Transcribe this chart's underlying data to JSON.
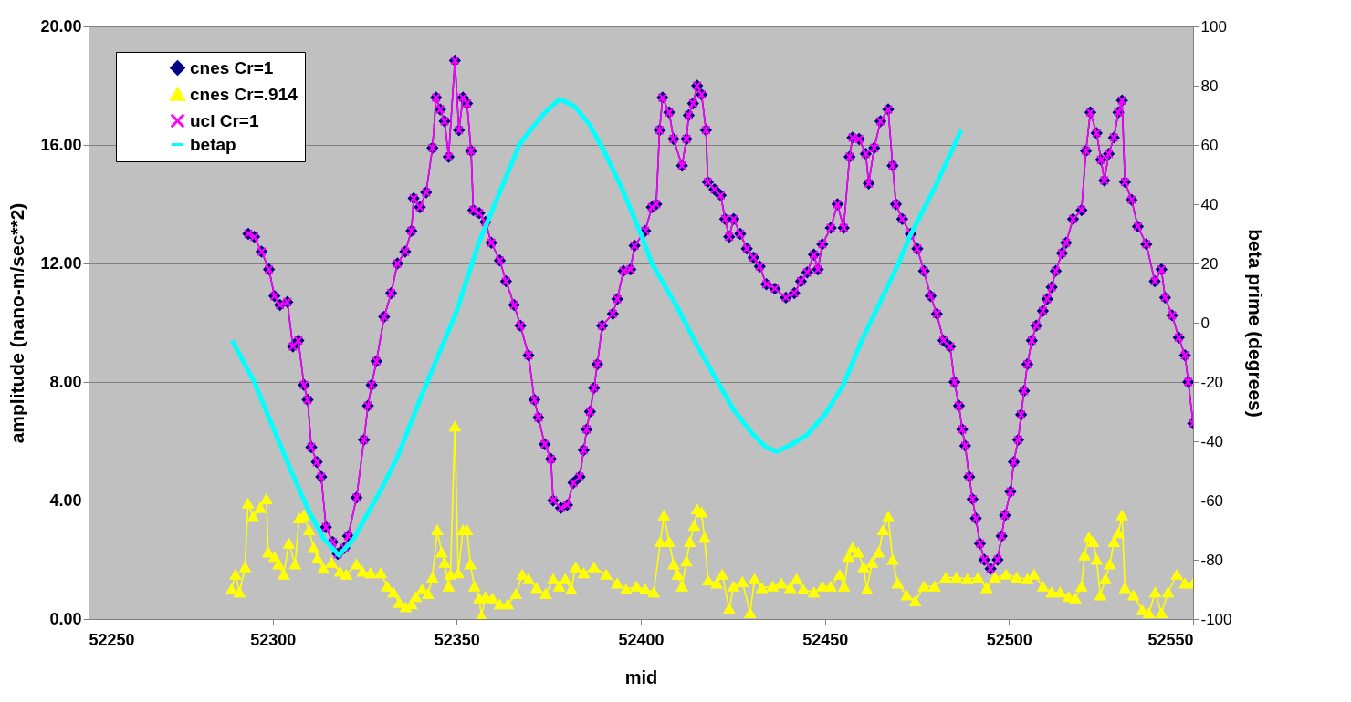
{
  "chart_data": {
    "type": "line",
    "xlabel": "mid",
    "ylabel": "amplitude (nano-m/sec**2)",
    "y2label": "beta prime (degrees)",
    "xlim": [
      52250,
      52550
    ],
    "xticks": [
      52250,
      52300,
      52350,
      52400,
      52450,
      52500,
      52550
    ],
    "ylim": [
      0,
      20
    ],
    "yticks": [
      {
        "value": 0,
        "label": "0.00"
      },
      {
        "value": 4,
        "label": "4.00"
      },
      {
        "value": 8,
        "label": "8.00"
      },
      {
        "value": 12,
        "label": "12.00"
      },
      {
        "value": 16,
        "label": "16.00"
      },
      {
        "value": 20,
        "label": "20.00"
      }
    ],
    "y2lim": [
      -100,
      100
    ],
    "y2ticks": [
      -100,
      -80,
      -60,
      -40,
      -20,
      0,
      20,
      40,
      60,
      80,
      100
    ],
    "grid": "y",
    "legend": "top left",
    "series": [
      {
        "name": "cnes Cr=1",
        "color": "#000080",
        "marker": "diamond",
        "x": [
          52293.4,
          52295,
          52297,
          52299,
          52300.5,
          52302,
          52304,
          52305.5,
          52307,
          52308.5,
          52309.5,
          52310.5,
          52312,
          52313.2,
          52314.5,
          52316.3,
          52317.7,
          52319.5,
          52320.5,
          52322.8,
          52324.8,
          52325.9,
          52326.9,
          52328.2,
          52330.3,
          52332.2,
          52333.9,
          52336,
          52337.7,
          52338.3,
          52340,
          52341.7,
          52343.4,
          52344.4,
          52345.5,
          52346.7,
          52347.8,
          52349.5,
          52350.6,
          52351.7,
          52352.8,
          52353.9,
          52354.5,
          52356.1,
          52357.8,
          52359.4,
          52361.7,
          52363.4,
          52365.6,
          52367.3,
          52369.5,
          52371.1,
          52372.2,
          52373.9,
          52375.6,
          52376.2,
          52378.3,
          52380,
          52381.7,
          52383.4,
          52384.5,
          52385.3,
          52386.2,
          52387.3,
          52388.2,
          52389.5,
          52392.4,
          52393.6,
          52395.3,
          52397.2,
          52398.3,
          52401.2,
          52403,
          52404.2,
          52405.1,
          52405.9,
          52407.7,
          52408.9,
          52411.2,
          52412.4,
          52413,
          52414.2,
          52415.3,
          52416.5,
          52417.7,
          52418.2,
          52420,
          52421.7,
          52422.9,
          52424,
          52425.2,
          52427,
          52428.8,
          52430.6,
          52432.3,
          52434.1,
          52436.4,
          52439.4,
          52441.7,
          52443.5,
          52445.2,
          52447,
          52448.1,
          52449.3,
          52451.6,
          52453.4,
          52455.1,
          52456.7,
          52457.5,
          52459.3,
          52461.1,
          52461.9,
          52463.4,
          52465.1,
          52467.2,
          52468.4,
          52469.3,
          52471,
          52473.3,
          52475.1,
          52476.9,
          52478.7,
          52480.4,
          52482.2,
          52484,
          52485.2,
          52486.4,
          52487.3,
          52488.1,
          52489.2,
          52490.1,
          52491,
          52492.1,
          52493.3,
          52495,
          52496.9,
          52498,
          52498.9,
          52500.4,
          52501.3,
          52502.5,
          52503.3,
          52504.1,
          52505,
          52506.2,
          52507.4,
          52509.2,
          52510.4,
          52511.6,
          52512.7,
          52514.4,
          52515.5,
          52517.4,
          52519.7,
          52520.9,
          52522.1,
          52523.8,
          52525,
          52525.9,
          52527.1,
          52528.5,
          52529.7,
          52530.7,
          52531.5,
          52533.3,
          52535,
          52537.3,
          52539.6,
          52541.4,
          52542.4,
          52544.3,
          52546.1,
          52547.8,
          52548.7,
          52550
        ],
        "values": [
          13.0,
          12.9,
          12.4,
          11.8,
          10.9,
          10.6,
          10.7,
          9.2,
          9.4,
          7.9,
          7.4,
          5.8,
          5.3,
          4.8,
          3.1,
          2.6,
          2.2,
          2.4,
          2.8,
          4.1,
          6.05,
          7.2,
          7.9,
          8.7,
          10.2,
          11.0,
          12.0,
          12.4,
          13.1,
          14.2,
          13.9,
          14.4,
          15.9,
          17.6,
          17.2,
          16.8,
          15.6,
          18.85,
          16.5,
          17.6,
          17.4,
          15.8,
          13.8,
          13.7,
          13.4,
          12.7,
          12.1,
          11.4,
          10.6,
          9.9,
          8.9,
          7.4,
          6.8,
          5.9,
          5.4,
          4.0,
          3.75,
          3.85,
          4.6,
          4.8,
          5.7,
          6.4,
          7.0,
          7.8,
          8.6,
          9.9,
          10.3,
          10.8,
          11.75,
          11.8,
          12.6,
          13.1,
          13.9,
          14.0,
          16.5,
          17.6,
          17.1,
          16.2,
          15.3,
          16.2,
          17.0,
          17.4,
          18.0,
          17.7,
          16.5,
          14.75,
          14.5,
          14.3,
          13.5,
          12.9,
          13.5,
          13.0,
          12.5,
          12.2,
          11.9,
          11.3,
          11.15,
          10.85,
          11.0,
          11.4,
          11.7,
          12.3,
          11.8,
          12.65,
          13.2,
          14.0,
          13.2,
          15.6,
          16.25,
          16.2,
          15.7,
          14.7,
          15.9,
          16.8,
          17.2,
          15.3,
          14.0,
          13.5,
          13.0,
          12.5,
          11.75,
          10.9,
          10.3,
          9.4,
          9.2,
          8.0,
          7.2,
          6.4,
          5.85,
          4.8,
          4.05,
          3.4,
          2.55,
          2.0,
          1.7,
          2.0,
          2.8,
          3.5,
          4.3,
          5.3,
          6.05,
          6.9,
          7.7,
          8.6,
          9.4,
          9.9,
          10.4,
          10.8,
          11.2,
          11.75,
          12.35,
          12.7,
          13.5,
          13.8,
          15.8,
          17.1,
          16.4,
          15.5,
          14.8,
          15.7,
          16.25,
          17.1,
          17.5,
          14.75,
          14.15,
          13.25,
          12.65,
          11.4,
          11.8,
          10.85,
          10.25,
          9.5,
          8.9,
          8.0,
          6.6
        ]
      },
      {
        "name": "cnes Cr=.914",
        "color": "#ffff00",
        "marker": "triangle",
        "x": [
          52288.8,
          52289.9,
          52291,
          52292.5,
          52293.3,
          52294.7,
          52296.6,
          52298.3,
          52298.8,
          52300.5,
          52301.6,
          52303,
          52304.4,
          52306.1,
          52307.2,
          52308.5,
          52309.9,
          52311.1,
          52312.2,
          52313.8,
          52316,
          52318.3,
          52320,
          52322.8,
          52324.4,
          52326.6,
          52329.4,
          52331.1,
          52332.8,
          52334.4,
          52336.1,
          52337.7,
          52338.9,
          52340.6,
          52342.2,
          52343.4,
          52344.7,
          52345.9,
          52346.7,
          52347.8,
          52348.3,
          52349.5,
          52350.4,
          52351.7,
          52352.8,
          52353.7,
          52354.8,
          52356.1,
          52356.7,
          52357.8,
          52359.7,
          52361.7,
          52363.9,
          52366.1,
          52367.8,
          52369.5,
          52371.7,
          52374.2,
          52376.2,
          52377.8,
          52379.5,
          52381.1,
          52382.3,
          52384.5,
          52387.3,
          52390.6,
          52393.6,
          52396,
          52398.8,
          52401.2,
          52403.5,
          52405.3,
          52406.3,
          52407.7,
          52408.9,
          52410,
          52411.2,
          52412.4,
          52413.3,
          52414.5,
          52415.3,
          52416.5,
          52417.3,
          52418.3,
          52420.6,
          52422.1,
          52424,
          52425.2,
          52427.6,
          52429.7,
          52430.9,
          52432.9,
          52435.8,
          52438.2,
          52440.6,
          52442.3,
          52444.1,
          52447,
          52449.3,
          52451.6,
          52454,
          52455.2,
          52456.4,
          52457.5,
          52459,
          52460.5,
          52461.4,
          52462.8,
          52464.6,
          52465.8,
          52467.2,
          52468.4,
          52469.8,
          52472.2,
          52474.5,
          52476.9,
          52479.8,
          52482.8,
          52485.7,
          52488.7,
          52491.6,
          52493.9,
          52496.2,
          52499.2,
          52502.1,
          52505,
          52506.8,
          52509.2,
          52511.6,
          52513.9,
          52516.2,
          52518,
          52519.7,
          52520.5,
          52521.7,
          52522.9,
          52523.8,
          52524.8,
          52526.2,
          52527.4,
          52528.5,
          52529.7,
          52530.7,
          52531.5,
          52533.8,
          52536.2,
          52538,
          52539.7,
          52541.4,
          52543.2,
          52545.6,
          52547.8,
          52550
        ],
        "values": [
          1.0,
          1.5,
          0.9,
          1.75,
          3.9,
          3.45,
          3.75,
          4.05,
          2.25,
          2.1,
          1.85,
          1.5,
          2.55,
          1.85,
          3.4,
          3.5,
          3.0,
          2.4,
          2.05,
          1.7,
          1.9,
          1.6,
          1.5,
          1.85,
          1.6,
          1.55,
          1.55,
          1.1,
          0.9,
          0.55,
          0.4,
          0.5,
          0.75,
          1.0,
          0.85,
          1.4,
          3.0,
          2.25,
          1.9,
          1.1,
          1.5,
          6.5,
          1.55,
          3.0,
          3.0,
          1.85,
          1.1,
          0.7,
          0.1,
          0.75,
          0.7,
          0.5,
          0.5,
          0.85,
          1.5,
          1.35,
          1.05,
          0.85,
          1.35,
          1.1,
          1.35,
          1.0,
          1.75,
          1.55,
          1.75,
          1.5,
          1.2,
          1.0,
          1.1,
          1.0,
          0.9,
          2.6,
          3.5,
          2.6,
          1.85,
          1.5,
          1.1,
          1.95,
          2.6,
          3.15,
          3.7,
          3.6,
          2.75,
          1.3,
          1.2,
          1.5,
          0.35,
          1.1,
          1.25,
          0.2,
          1.35,
          1.05,
          1.1,
          1.2,
          1.05,
          1.35,
          1.0,
          0.9,
          1.1,
          1.1,
          1.5,
          1.1,
          2.1,
          2.4,
          2.25,
          1.75,
          1.0,
          1.9,
          2.25,
          3.0,
          3.45,
          2.0,
          1.2,
          0.8,
          0.6,
          1.1,
          1.1,
          1.4,
          1.4,
          1.35,
          1.4,
          1.05,
          1.4,
          1.5,
          1.4,
          1.35,
          1.5,
          1.1,
          0.9,
          0.9,
          0.75,
          0.7,
          1.1,
          2.15,
          2.75,
          2.6,
          2.0,
          0.8,
          1.35,
          1.85,
          2.6,
          2.9,
          3.5,
          1.05,
          0.8,
          0.3,
          0.2,
          0.9,
          0.2,
          0.9,
          1.5,
          1.2,
          1.2
        ]
      },
      {
        "name": "ucl Cr=1",
        "color": "#ff00ff",
        "marker": "cross",
        "x": [
          52293.4,
          52295,
          52297,
          52299,
          52300.5,
          52302,
          52304,
          52305.5,
          52307,
          52308.5,
          52309.5,
          52310.5,
          52312,
          52313.2,
          52314.5,
          52316.3,
          52317.7,
          52319.5,
          52320.5,
          52322.8,
          52324.8,
          52325.9,
          52326.9,
          52328.2,
          52330.3,
          52332.2,
          52333.9,
          52336,
          52337.7,
          52338.3,
          52340,
          52341.7,
          52343.4,
          52344.4,
          52345.5,
          52346.7,
          52347.8,
          52349.5,
          52350.6,
          52351.7,
          52352.8,
          52353.9,
          52354.5,
          52356.1,
          52357.8,
          52359.4,
          52361.7,
          52363.4,
          52365.6,
          52367.3,
          52369.5,
          52371.1,
          52372.2,
          52373.9,
          52375.6,
          52376.2,
          52378.3,
          52380,
          52381.7,
          52383.4,
          52384.5,
          52385.3,
          52386.2,
          52387.3,
          52388.2,
          52389.5,
          52392.4,
          52393.6,
          52395.3,
          52397.2,
          52398.3,
          52401.2,
          52403,
          52404.2,
          52405.1,
          52405.9,
          52407.7,
          52408.9,
          52411.2,
          52412.4,
          52413,
          52414.2,
          52415.3,
          52416.5,
          52417.7,
          52418.2,
          52420,
          52421.7,
          52422.9,
          52424,
          52425.2,
          52427,
          52428.8,
          52430.6,
          52432.3,
          52434.1,
          52436.4,
          52439.4,
          52441.7,
          52443.5,
          52445.2,
          52447,
          52448.1,
          52449.3,
          52451.6,
          52453.4,
          52455.1,
          52456.7,
          52457.5,
          52459.3,
          52461.1,
          52461.9,
          52463.4,
          52465.1,
          52467.2,
          52468.4,
          52469.3,
          52471,
          52473.3,
          52475.1,
          52476.9,
          52478.7,
          52480.4,
          52482.2,
          52484,
          52485.2,
          52486.4,
          52487.3,
          52488.1,
          52489.2,
          52490.1,
          52491,
          52492.1,
          52493.3,
          52495,
          52496.9,
          52498,
          52498.9,
          52500.4,
          52501.3,
          52502.5,
          52503.3,
          52504.1,
          52505,
          52506.2,
          52507.4,
          52509.2,
          52510.4,
          52511.6,
          52512.7,
          52514.4,
          52515.5,
          52517.4,
          52519.7,
          52520.9,
          52522.1,
          52523.8,
          52525,
          52525.9,
          52527.1,
          52528.5,
          52529.7,
          52530.7,
          52531.5,
          52533.3,
          52535,
          52537.3,
          52539.6,
          52541.4,
          52542.4,
          52544.3,
          52546.1,
          52547.8,
          52548.7,
          52550
        ],
        "values": [
          13.0,
          12.9,
          12.4,
          11.8,
          10.9,
          10.6,
          10.7,
          9.2,
          9.4,
          7.9,
          7.4,
          5.8,
          5.3,
          4.8,
          3.1,
          2.6,
          2.2,
          2.4,
          2.8,
          4.1,
          6.05,
          7.2,
          7.9,
          8.7,
          10.2,
          11.0,
          12.0,
          12.4,
          13.1,
          14.2,
          13.9,
          14.4,
          15.9,
          17.6,
          17.2,
          16.8,
          15.6,
          18.85,
          16.5,
          17.6,
          17.4,
          15.8,
          13.8,
          13.7,
          13.4,
          12.7,
          12.1,
          11.4,
          10.6,
          9.9,
          8.9,
          7.4,
          6.8,
          5.9,
          5.4,
          4.0,
          3.75,
          3.85,
          4.6,
          4.8,
          5.7,
          6.4,
          7.0,
          7.8,
          8.6,
          9.9,
          10.3,
          10.8,
          11.75,
          11.8,
          12.6,
          13.1,
          13.9,
          14.0,
          16.5,
          17.6,
          17.1,
          16.2,
          15.3,
          16.2,
          17.0,
          17.4,
          18.0,
          17.7,
          16.5,
          14.75,
          14.5,
          14.3,
          13.5,
          12.9,
          13.5,
          13.0,
          12.5,
          12.2,
          11.9,
          11.3,
          11.15,
          10.85,
          11.0,
          11.4,
          11.7,
          12.3,
          11.8,
          12.65,
          13.2,
          14.0,
          13.2,
          15.6,
          16.25,
          16.2,
          15.7,
          14.7,
          15.9,
          16.8,
          17.2,
          15.3,
          14.0,
          13.5,
          13.0,
          12.5,
          11.75,
          10.9,
          10.3,
          9.4,
          9.2,
          8.0,
          7.2,
          6.4,
          5.85,
          4.8,
          4.05,
          3.4,
          2.55,
          2.0,
          1.7,
          2.0,
          2.8,
          3.5,
          4.3,
          5.3,
          6.05,
          6.9,
          7.7,
          8.6,
          9.4,
          9.9,
          10.4,
          10.8,
          11.2,
          11.75,
          12.35,
          12.7,
          13.5,
          13.8,
          15.8,
          17.1,
          16.4,
          15.5,
          14.8,
          15.7,
          16.25,
          17.1,
          17.5,
          14.75,
          14.15,
          13.25,
          12.65,
          11.4,
          11.8,
          10.85,
          10.25,
          9.5,
          8.9,
          8.0,
          6.6
        ]
      },
      {
        "name": "betap",
        "color": "#00ffff",
        "marker": "none",
        "axis": "y2",
        "x": [
          52289,
          52295,
          52300,
          52305,
          52310,
          52314,
          52318,
          52322,
          52326,
          52330,
          52334,
          52340,
          52346,
          52350,
          52356,
          52360,
          52367,
          52370,
          52374,
          52378,
          52382,
          52386,
          52390,
          52395,
          52400,
          52403,
          52410,
          52415,
          52420,
          52425,
          52430,
          52434,
          52437,
          52441,
          52445,
          52450,
          52455,
          52460,
          52465,
          52470,
          52473,
          52480,
          52487
        ],
        "values": [
          -6,
          -20,
          -35,
          -50,
          -64,
          -73,
          -78.5,
          -73,
          -64,
          -55,
          -45,
          -26,
          -8,
          4,
          27,
          39,
          60,
          65,
          71,
          75.5,
          73,
          67,
          58,
          45,
          30,
          20,
          5,
          -7,
          -18,
          -29,
          -37,
          -42,
          -43.5,
          -41,
          -38,
          -31,
          -21,
          -6,
          7,
          20,
          29,
          46,
          65
        ]
      }
    ]
  }
}
